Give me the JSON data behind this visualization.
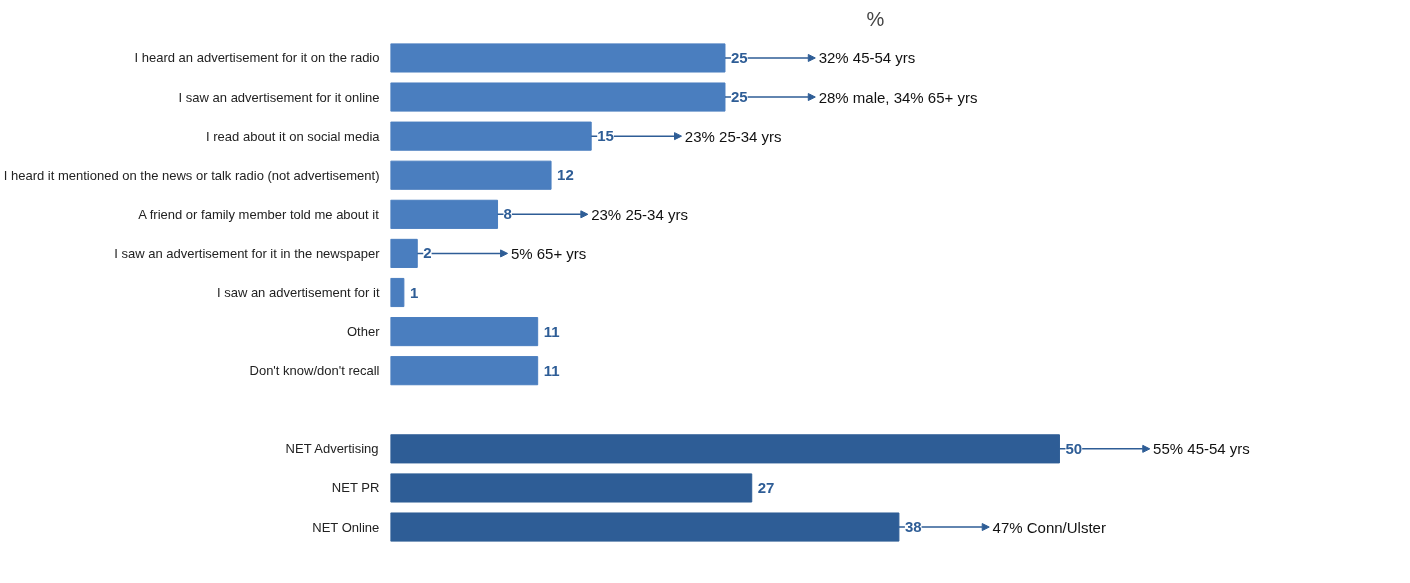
{
  "chart_data": {
    "type": "bar",
    "orientation": "horizontal",
    "title": "%",
    "data_labels": true,
    "grid": false,
    "categories": [
      "I heard an advertisement for it on the radio",
      "I saw an advertisement for it online",
      "I read about it on social media",
      "I heard it mentioned on the news or talk radio (not advertisement)",
      "A friend or family member told me about it",
      "I saw an advertisement for it in the newspaper",
      "I saw an advertisement for it",
      "Other",
      "Don't know/don't recall",
      null,
      "NET Advertising",
      "NET PR",
      "NET Online"
    ],
    "values": [
      25,
      25,
      15,
      12,
      8,
      2,
      1,
      11,
      11,
      null,
      50,
      27,
      38
    ],
    "colors": [
      "#4a7ebf",
      "#4a7ebf",
      "#4a7ebf",
      "#4a7ebf",
      "#4a7ebf",
      "#4a7ebf",
      "#4a7ebf",
      "#4a7ebf",
      "#4a7ebf",
      "#4a7ebf",
      "#2e5d96",
      "#2e5d96",
      "#2e5d96"
    ],
    "annotations": [
      {
        "text": "32% 45-54 yrs",
        "x": 25,
        "y": "I heard an advertisement for it on the radio"
      },
      {
        "text": "28% male, 34% 65+ yrs",
        "x": 25,
        "y": "I saw an advertisement for it online"
      },
      {
        "text": "23% 25-34 yrs",
        "x": 8,
        "y": "A friend or family member told me about it"
      },
      {
        "text": "23% 25-34 yrs",
        "x": 15,
        "y": "I read about it on social media"
      },
      {
        "text": "5% 65+ yrs",
        "x": 2,
        "y": "I saw an advertisement for it in the newspaper"
      },
      {
        "text": "55% 45-54 yrs",
        "x": 50,
        "y": "NET Advertising"
      },
      {
        "text": "47% Conn/Ulster",
        "x": 38,
        "y": "NET Online"
      }
    ]
  }
}
